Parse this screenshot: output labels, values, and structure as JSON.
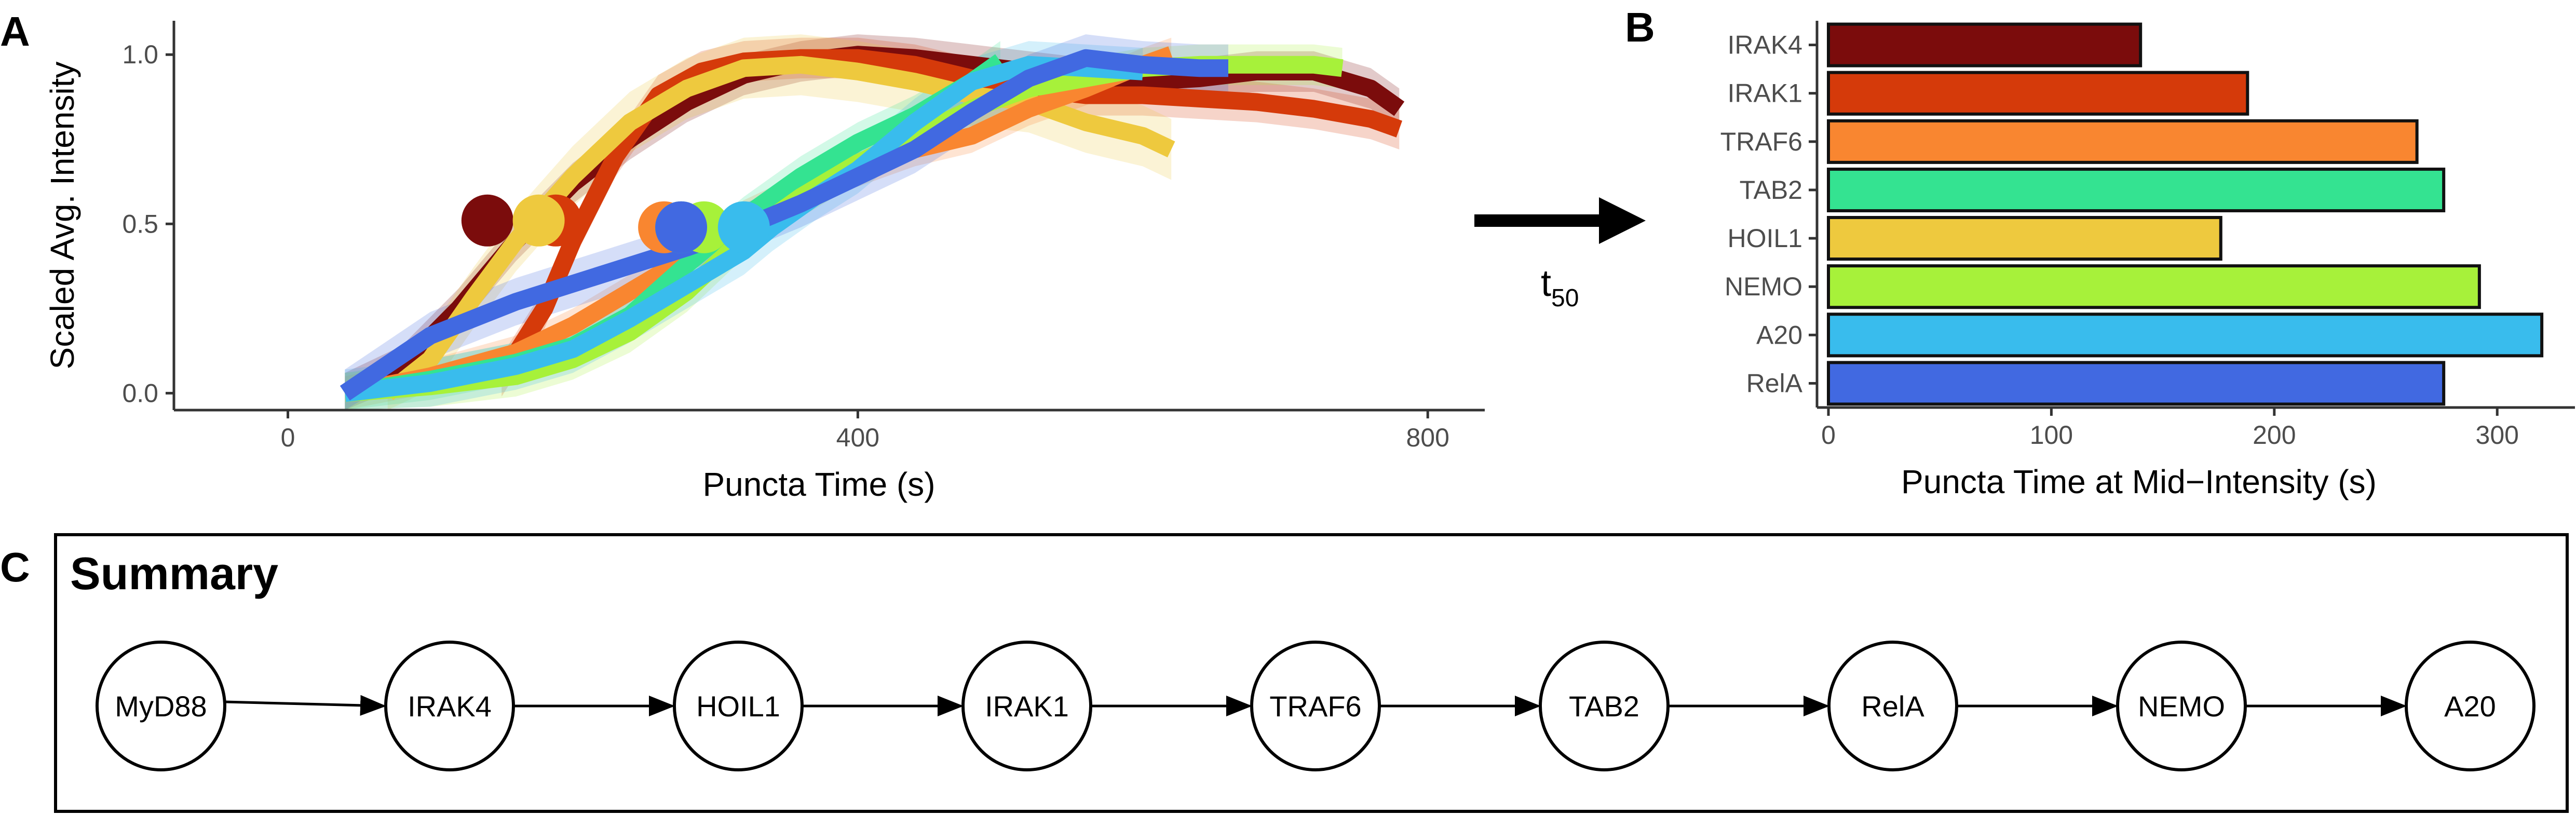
{
  "panels": {
    "A": {
      "letter": "A"
    },
    "B": {
      "letter": "B"
    },
    "C": {
      "letter": "C"
    }
  },
  "arrow": {
    "label": "t",
    "subscript": "50"
  },
  "chart_data": [
    {
      "type": "line",
      "panel": "A",
      "xlabel": "Puncta Time (s)",
      "ylabel": "Scaled Avg. Intensity",
      "xlim": [
        -80,
        840
      ],
      "ylim": [
        -0.05,
        1.1
      ],
      "xticks": [
        0,
        400,
        800
      ],
      "yticks": [
        0.0,
        0.5,
        1.0
      ],
      "ytick_labels": [
        "0.0",
        "0.5",
        "1.0"
      ],
      "grid": false,
      "series": [
        {
          "color": "#7B0C0C",
          "band": 0.06,
          "points": [
            [
              40,
              0.0
            ],
            [
              80,
              0.08
            ],
            [
              120,
              0.25
            ],
            [
              160,
              0.45
            ],
            [
              200,
              0.62
            ],
            [
              240,
              0.75
            ],
            [
              280,
              0.86
            ],
            [
              320,
              0.94
            ],
            [
              360,
              0.98
            ],
            [
              400,
              1.0
            ],
            [
              440,
              0.99
            ],
            [
              480,
              0.97
            ],
            [
              520,
              0.95
            ],
            [
              560,
              0.93
            ],
            [
              600,
              0.92
            ],
            [
              640,
              0.93
            ],
            [
              680,
              0.95
            ],
            [
              720,
              0.95
            ],
            [
              760,
              0.9
            ],
            [
              780,
              0.84
            ]
          ],
          "t50": [
            140,
            0.51
          ]
        },
        {
          "color": "#D53A0A",
          "band": 0.06,
          "points": [
            [
              150,
              0.05
            ],
            [
              180,
              0.25
            ],
            [
              200,
              0.45
            ],
            [
              230,
              0.7
            ],
            [
              260,
              0.88
            ],
            [
              290,
              0.95
            ],
            [
              320,
              0.98
            ],
            [
              360,
              0.99
            ],
            [
              400,
              0.99
            ],
            [
              440,
              0.97
            ],
            [
              480,
              0.93
            ],
            [
              520,
              0.9
            ],
            [
              560,
              0.88
            ],
            [
              600,
              0.88
            ],
            [
              640,
              0.87
            ],
            [
              680,
              0.86
            ],
            [
              720,
              0.84
            ],
            [
              760,
              0.81
            ],
            [
              780,
              0.78
            ]
          ],
          "t50": [
            188,
            0.51
          ]
        },
        {
          "color": "#EEC93E",
          "band": 0.09,
          "points": [
            [
              70,
              0.0
            ],
            [
              100,
              0.1
            ],
            [
              130,
              0.28
            ],
            [
              160,
              0.45
            ],
            [
              200,
              0.64
            ],
            [
              240,
              0.8
            ],
            [
              280,
              0.9
            ],
            [
              320,
              0.96
            ],
            [
              360,
              0.97
            ],
            [
              400,
              0.95
            ],
            [
              440,
              0.92
            ],
            [
              480,
              0.88
            ],
            [
              520,
              0.86
            ],
            [
              560,
              0.8
            ],
            [
              600,
              0.76
            ],
            [
              620,
              0.72
            ]
          ],
          "t50": [
            176,
            0.51
          ]
        },
        {
          "color": "#F98630",
          "band": 0.05,
          "points": [
            [
              40,
              0.0
            ],
            [
              100,
              0.05
            ],
            [
              160,
              0.12
            ],
            [
              200,
              0.2
            ],
            [
              240,
              0.3
            ],
            [
              280,
              0.4
            ],
            [
              320,
              0.52
            ],
            [
              360,
              0.6
            ],
            [
              400,
              0.66
            ],
            [
              440,
              0.72
            ],
            [
              480,
              0.76
            ],
            [
              520,
              0.84
            ],
            [
              560,
              0.9
            ],
            [
              600,
              0.97
            ],
            [
              620,
              1.0
            ]
          ],
          "t50": [
            264,
            0.49
          ]
        },
        {
          "color": "#34E391",
          "band": 0.06,
          "points": [
            [
              40,
              0.0
            ],
            [
              100,
              0.04
            ],
            [
              160,
              0.09
            ],
            [
              200,
              0.14
            ],
            [
              240,
              0.23
            ],
            [
              280,
              0.38
            ],
            [
              320,
              0.52
            ],
            [
              360,
              0.64
            ],
            [
              400,
              0.74
            ],
            [
              440,
              0.82
            ],
            [
              480,
              0.92
            ],
            [
              500,
              0.98
            ]
          ],
          "t50": [
            276,
            0.49
          ]
        },
        {
          "color": "#A7F13A",
          "band": 0.06,
          "points": [
            [
              40,
              0.0
            ],
            [
              100,
              0.02
            ],
            [
              160,
              0.05
            ],
            [
              200,
              0.1
            ],
            [
              240,
              0.18
            ],
            [
              280,
              0.3
            ],
            [
              320,
              0.46
            ],
            [
              360,
              0.58
            ],
            [
              400,
              0.68
            ],
            [
              440,
              0.76
            ],
            [
              480,
              0.84
            ],
            [
              520,
              0.9
            ],
            [
              560,
              0.93
            ],
            [
              600,
              0.96
            ],
            [
              640,
              0.97
            ],
            [
              680,
              0.97
            ],
            [
              720,
              0.97
            ],
            [
              740,
              0.96
            ]
          ],
          "t50": [
            292,
            0.49
          ]
        },
        {
          "color": "#39BCED",
          "band": 0.07,
          "points": [
            [
              40,
              0.0
            ],
            [
              100,
              0.03
            ],
            [
              160,
              0.08
            ],
            [
              200,
              0.13
            ],
            [
              240,
              0.22
            ],
            [
              280,
              0.32
            ],
            [
              320,
              0.42
            ],
            [
              340,
              0.49
            ],
            [
              370,
              0.58
            ],
            [
              400,
              0.66
            ],
            [
              440,
              0.8
            ],
            [
              480,
              0.92
            ],
            [
              520,
              0.97
            ],
            [
              560,
              0.96
            ],
            [
              600,
              0.95
            ]
          ],
          "t50": [
            320,
            0.49
          ]
        },
        {
          "color": "#4169E1",
          "band": 0.07,
          "points": [
            [
              40,
              0.0
            ],
            [
              100,
              0.17
            ],
            [
              160,
              0.27
            ],
            [
              220,
              0.35
            ],
            [
              280,
              0.43
            ],
            [
              320,
              0.49
            ],
            [
              360,
              0.56
            ],
            [
              400,
              0.64
            ],
            [
              440,
              0.72
            ],
            [
              480,
              0.83
            ],
            [
              520,
              0.93
            ],
            [
              560,
              0.99
            ],
            [
              600,
              0.97
            ],
            [
              640,
              0.96
            ],
            [
              660,
              0.96
            ]
          ],
          "t50": [
            276,
            0.49
          ]
        }
      ]
    },
    {
      "type": "bar",
      "panel": "B",
      "orientation": "horizontal",
      "xlabel": "Puncta Time at Mid−Intensity (s)",
      "xlim": [
        0,
        340
      ],
      "xticks": [
        0,
        100,
        200,
        300
      ],
      "categories": [
        "IRAK4",
        "IRAK1",
        "TRAF6",
        "TAB2",
        "HOIL1",
        "NEMO",
        "A20",
        "RelA"
      ],
      "values": [
        140,
        188,
        264,
        276,
        176,
        292,
        320,
        276
      ],
      "colors": [
        "#7B0C0C",
        "#D53A0A",
        "#F98630",
        "#34E391",
        "#EEC93E",
        "#A7F13A",
        "#39BCED",
        "#4169E1"
      ]
    }
  ],
  "summary": {
    "title": "Summary",
    "nodes": [
      "MyD88",
      "IRAK4",
      "HOIL1",
      "IRAK1",
      "TRAF6",
      "TAB2",
      "RelA",
      "NEMO",
      "A20"
    ]
  }
}
